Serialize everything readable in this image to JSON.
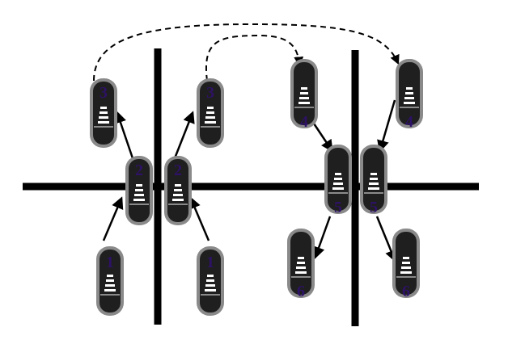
{
  "colors": {
    "background": "#ffffff",
    "line": "#000000",
    "shoe_outline": "#8a8a8a",
    "shoe_fill": "#1f1f1f",
    "stripe": "#ffffff",
    "number": "#2e1266"
  },
  "shoes": [
    {
      "step": "1"
    },
    {
      "step": "2"
    },
    {
      "step": "3"
    },
    {
      "step": "1"
    },
    {
      "step": "2"
    },
    {
      "step": "3"
    },
    {
      "step": "4"
    },
    {
      "step": "5"
    },
    {
      "step": "6"
    },
    {
      "step": "4"
    },
    {
      "step": "5"
    },
    {
      "step": "6"
    }
  ],
  "icons": {
    "shoe": "shoe-icon",
    "step_arrow": "arrow-icon",
    "hop_arrow": "dashed-arc-arrow-icon"
  }
}
